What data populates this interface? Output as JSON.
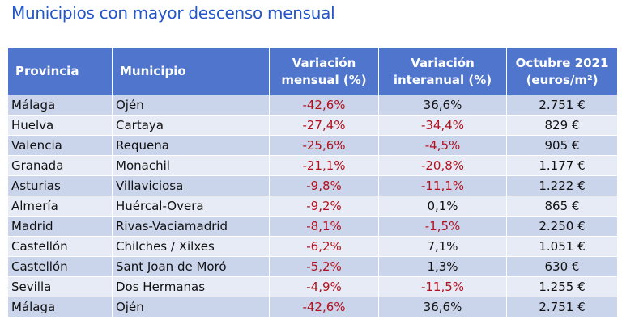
{
  "title": "Municipios con mayor descenso mensual",
  "headers": {
    "provincia": "Provincia",
    "municipio": "Municipio",
    "var_mensual_1": "Variación",
    "var_mensual_2": "mensual (%)",
    "var_interanual_1": "Variación",
    "var_interanual_2": "interanual (%)",
    "octubre_1": "Octubre 2021",
    "octubre_2": "(euros/m²)"
  },
  "rows": [
    {
      "provincia": "Málaga",
      "municipio": "Ojén",
      "mensual": "-42,6%",
      "interanual": "36,6%",
      "precio": "2.751 €"
    },
    {
      "provincia": "Huelva",
      "municipio": "Cartaya",
      "mensual": "-27,4%",
      "interanual": "-34,4%",
      "precio": "829 €"
    },
    {
      "provincia": "Valencia",
      "municipio": "Requena",
      "mensual": "-25,6%",
      "interanual": "-4,5%",
      "precio": "905 €"
    },
    {
      "provincia": "Granada",
      "municipio": "Monachil",
      "mensual": "-21,1%",
      "interanual": "-20,8%",
      "precio": "1.177 €"
    },
    {
      "provincia": "Asturias",
      "municipio": "Villaviciosa",
      "mensual": "-9,8%",
      "interanual": "-11,1%",
      "precio": "1.222 €"
    },
    {
      "provincia": "Almería",
      "municipio": "Huércal-Overa",
      "mensual": "-9,2%",
      "interanual": "0,1%",
      "precio": "865 €"
    },
    {
      "provincia": "Madrid",
      "municipio": "Rivas-Vaciamadrid",
      "mensual": "-8,1%",
      "interanual": "-1,5%",
      "precio": "2.250 €"
    },
    {
      "provincia": "Castellón",
      "municipio": "Chilches / Xilxes",
      "mensual": "-6,2%",
      "interanual": "7,1%",
      "precio": "1.051 €"
    },
    {
      "provincia": "Castellón",
      "municipio": "Sant Joan de Moró",
      "mensual": "-5,2%",
      "interanual": "1,3%",
      "precio": "630 €"
    },
    {
      "provincia": "Sevilla",
      "municipio": "Dos Hermanas",
      "mensual": "-4,9%",
      "interanual": "-11,5%",
      "precio": "1.255 €"
    },
    {
      "provincia": "Málaga",
      "municipio": "Ojén",
      "mensual": "-42,6%",
      "interanual": "36,6%",
      "precio": "2.751 €"
    }
  ],
  "colors": {
    "title": "#2356c8",
    "header_bg": "#4f76cc",
    "row_dark": "#cad4ea",
    "row_light": "#e7ebf5",
    "negative_text": "#b3111e"
  }
}
